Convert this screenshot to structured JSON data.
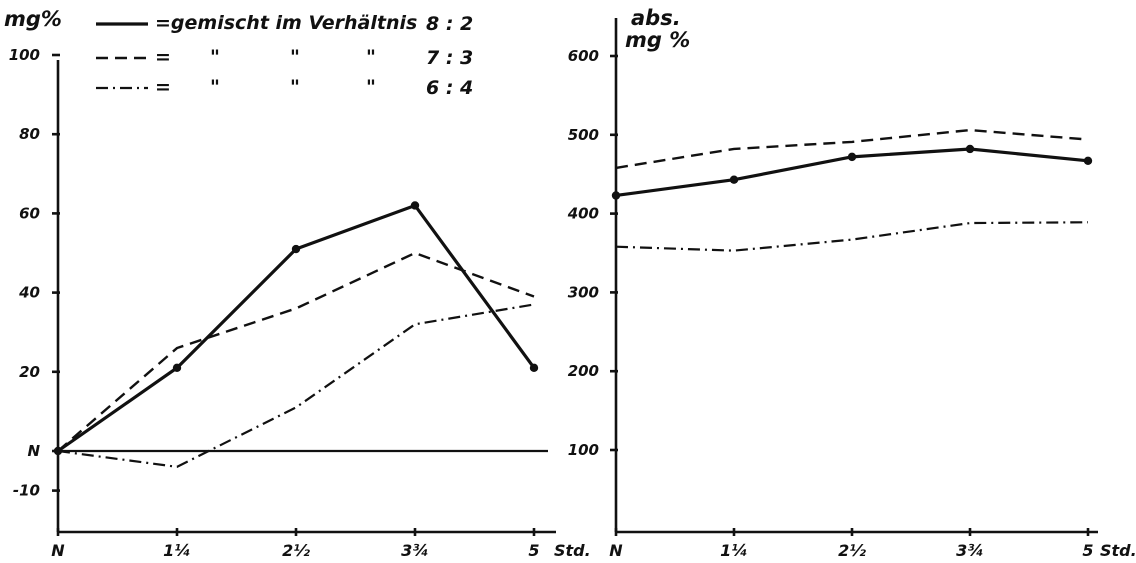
{
  "legend": {
    "entries": [
      {
        "style": "solid",
        "text": "=gemischt im Verhältnis",
        "ditto": [],
        "ratio": "8 : 2"
      },
      {
        "style": "dash",
        "text": "=",
        "ditto": [
          "\"",
          "\"",
          "\""
        ],
        "ratio": "7 : 3"
      },
      {
        "style": "dashdot",
        "text": "=",
        "ditto": [
          "\"",
          "\"",
          "\""
        ],
        "ratio": "6 : 4"
      }
    ]
  },
  "chart_data": [
    {
      "type": "line",
      "ylabel": "mg%",
      "xunit": "Std.",
      "categories": [
        "N",
        "1¼",
        "2½",
        "3¾",
        "5"
      ],
      "y_ticks": [
        {
          "v": 100,
          "label": "100"
        },
        {
          "v": 80,
          "label": "80"
        },
        {
          "v": 60,
          "label": "60"
        },
        {
          "v": 40,
          "label": "40"
        },
        {
          "v": 20,
          "label": "20"
        },
        {
          "v": 0,
          "label": "N"
        },
        {
          "v": -10,
          "label": "-10"
        }
      ],
      "ylim": [
        -20,
        105
      ],
      "baseline": 0,
      "grid": false,
      "series": [
        {
          "style": "solid",
          "markers": true,
          "values": [
            0,
            21,
            51,
            62,
            21
          ]
        },
        {
          "style": "dash",
          "markers": false,
          "values": [
            0,
            26,
            36,
            50,
            39
          ]
        },
        {
          "style": "dashdot",
          "markers": false,
          "values": [
            0,
            -4,
            11,
            32,
            37
          ]
        }
      ]
    },
    {
      "type": "line",
      "ylabel": "abs. mg %",
      "xunit": "Std.",
      "categories": [
        "N",
        "1¼",
        "2½",
        "3¾",
        "5"
      ],
      "y_ticks": [
        {
          "v": 600,
          "label": "600"
        },
        {
          "v": 500,
          "label": "500"
        },
        {
          "v": 400,
          "label": "400"
        },
        {
          "v": 300,
          "label": "300"
        },
        {
          "v": 200,
          "label": "200"
        },
        {
          "v": 100,
          "label": "100"
        }
      ],
      "ylim": [
        0,
        620
      ],
      "grid": false,
      "series": [
        {
          "style": "solid",
          "markers": true,
          "values": [
            423,
            443,
            472,
            482,
            467
          ]
        },
        {
          "style": "dash",
          "markers": false,
          "values": [
            458,
            482,
            491,
            506,
            494
          ]
        },
        {
          "style": "dashdot",
          "markers": false,
          "values": [
            358,
            353,
            367,
            388,
            389
          ]
        }
      ]
    }
  ]
}
